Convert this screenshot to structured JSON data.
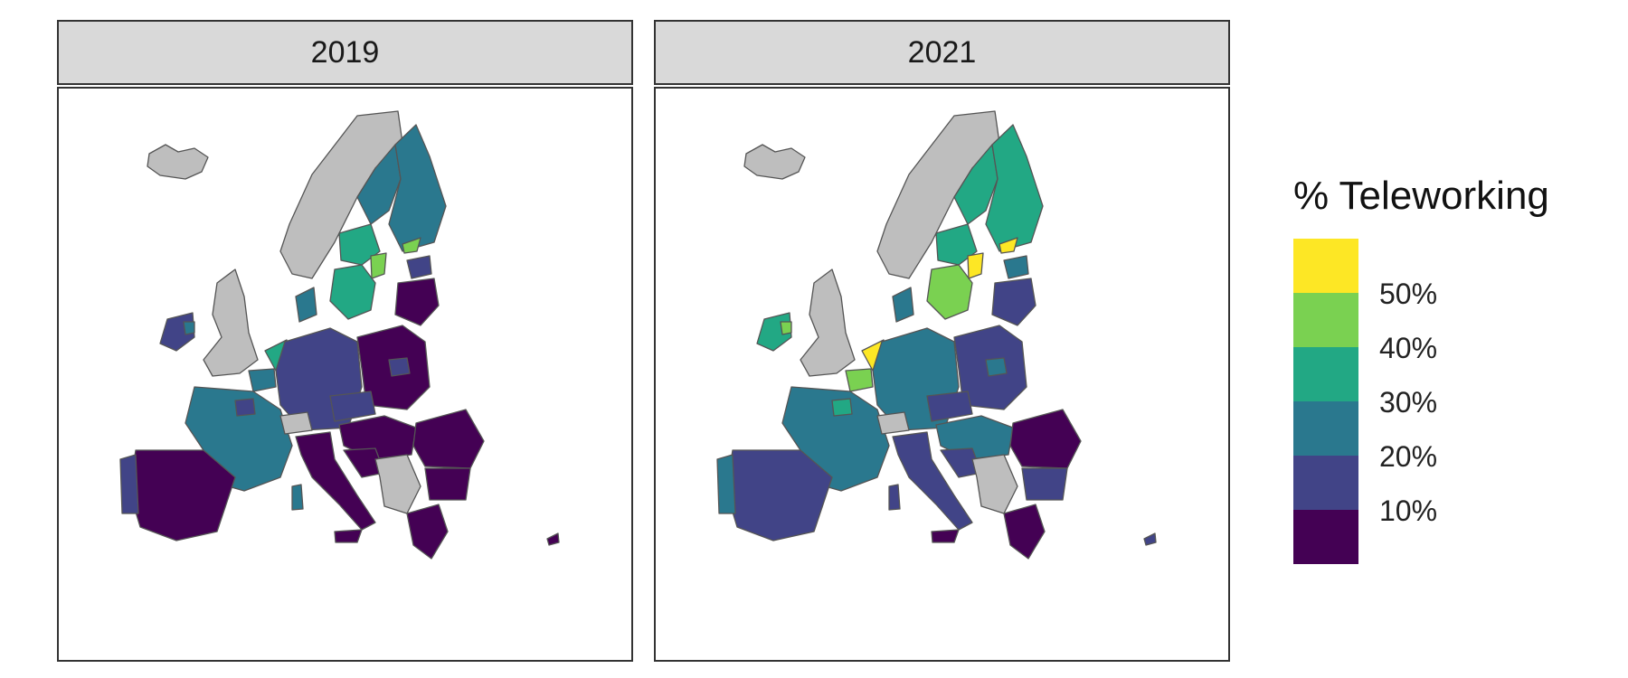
{
  "panels": [
    {
      "label": "2019"
    },
    {
      "label": "2021"
    }
  ],
  "legend": {
    "title": "% Teleworking",
    "bins": [
      "#fde725",
      "#7ad151",
      "#22a884",
      "#2a788e",
      "#414487",
      "#440154"
    ],
    "labels": [
      "50%",
      "40%",
      "30%",
      "20%",
      "10%"
    ]
  },
  "colors": {
    "no_data": "#bebebe",
    "border": "#555555",
    "frame": "#333333",
    "strip_bg": "#d9d9d9"
  }
}
